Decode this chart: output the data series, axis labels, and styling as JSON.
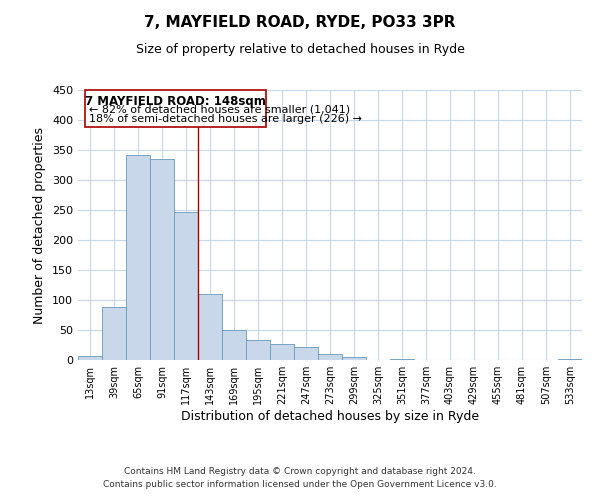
{
  "title": "7, MAYFIELD ROAD, RYDE, PO33 3PR",
  "subtitle": "Size of property relative to detached houses in Ryde",
  "xlabel": "Distribution of detached houses by size in Ryde",
  "ylabel": "Number of detached properties",
  "bar_color": "#c8d8ea",
  "bar_edge_color": "#6699bb",
  "tick_labels": [
    "13sqm",
    "39sqm",
    "65sqm",
    "91sqm",
    "117sqm",
    "143sqm",
    "169sqm",
    "195sqm",
    "221sqm",
    "247sqm",
    "273sqm",
    "299sqm",
    "325sqm",
    "351sqm",
    "377sqm",
    "403sqm",
    "429sqm",
    "455sqm",
    "481sqm",
    "507sqm",
    "533sqm"
  ],
  "bar_heights": [
    7,
    89,
    342,
    335,
    246,
    110,
    50,
    33,
    27,
    22,
    10,
    5,
    0,
    1,
    0,
    0,
    0,
    0,
    0,
    0,
    1
  ],
  "ylim": [
    0,
    450
  ],
  "yticks": [
    0,
    50,
    100,
    150,
    200,
    250,
    300,
    350,
    400,
    450
  ],
  "property_line_x": 5.0,
  "property_line_color": "#aa0000",
  "annotation_title": "7 MAYFIELD ROAD: 148sqm",
  "annotation_line1": "← 82% of detached houses are smaller (1,041)",
  "annotation_line2": "18% of semi-detached houses are larger (226) →",
  "annotation_box_color": "#ffffff",
  "annotation_box_edge": "#aa0000",
  "footer1": "Contains HM Land Registry data © Crown copyright and database right 2024.",
  "footer2": "Contains public sector information licensed under the Open Government Licence v3.0.",
  "background_color": "#ffffff",
  "grid_color": "#c8d8ea"
}
